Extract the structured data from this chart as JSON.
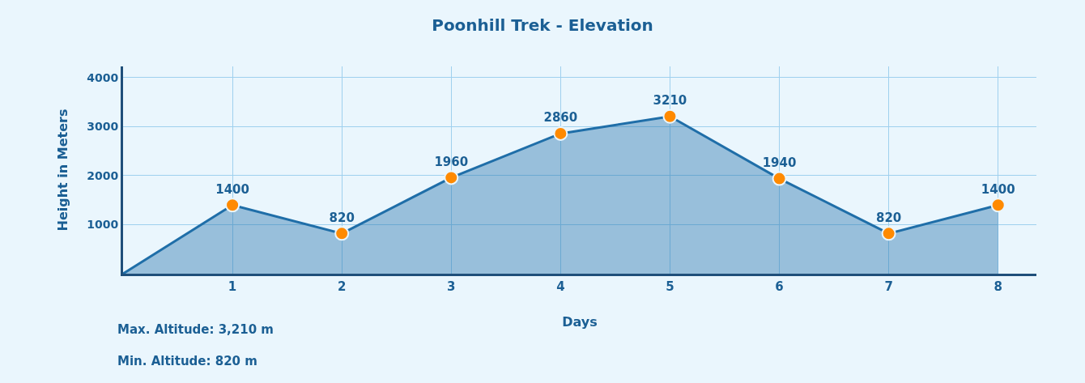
{
  "chart_data": {
    "type": "area",
    "title": "Poonhill Trek - Elevation",
    "xlabel": "Days",
    "ylabel": "Height in Meters",
    "series": [
      {
        "color": "#1f6ea8",
        "x": [
          0,
          1,
          2,
          3,
          4,
          5,
          6,
          7,
          8
        ],
        "values": [
          0,
          1400,
          820,
          1960,
          2860,
          3210,
          1940,
          820,
          1400
        ],
        "marker": "none"
      },
      {
        "type": "scatter",
        "color": "#ff8a00",
        "x": [
          1,
          2,
          3,
          4,
          5,
          6,
          7,
          8
        ],
        "values": [
          1400,
          820,
          1960,
          2860,
          3210,
          1940,
          820,
          1400
        ],
        "marker": "circle",
        "data_labels": true
      }
    ],
    "xlim": [
      0,
      8.35
    ],
    "xticks": [
      1,
      2,
      3,
      4,
      5,
      6,
      7,
      8
    ],
    "ylim": [
      0,
      4230
    ],
    "yticks": [
      1000,
      2000,
      3000,
      4000
    ],
    "grid": true,
    "annotations": [
      "Max. Altitude: 3,210 m",
      "Min. Altitude: 820 m"
    ]
  }
}
